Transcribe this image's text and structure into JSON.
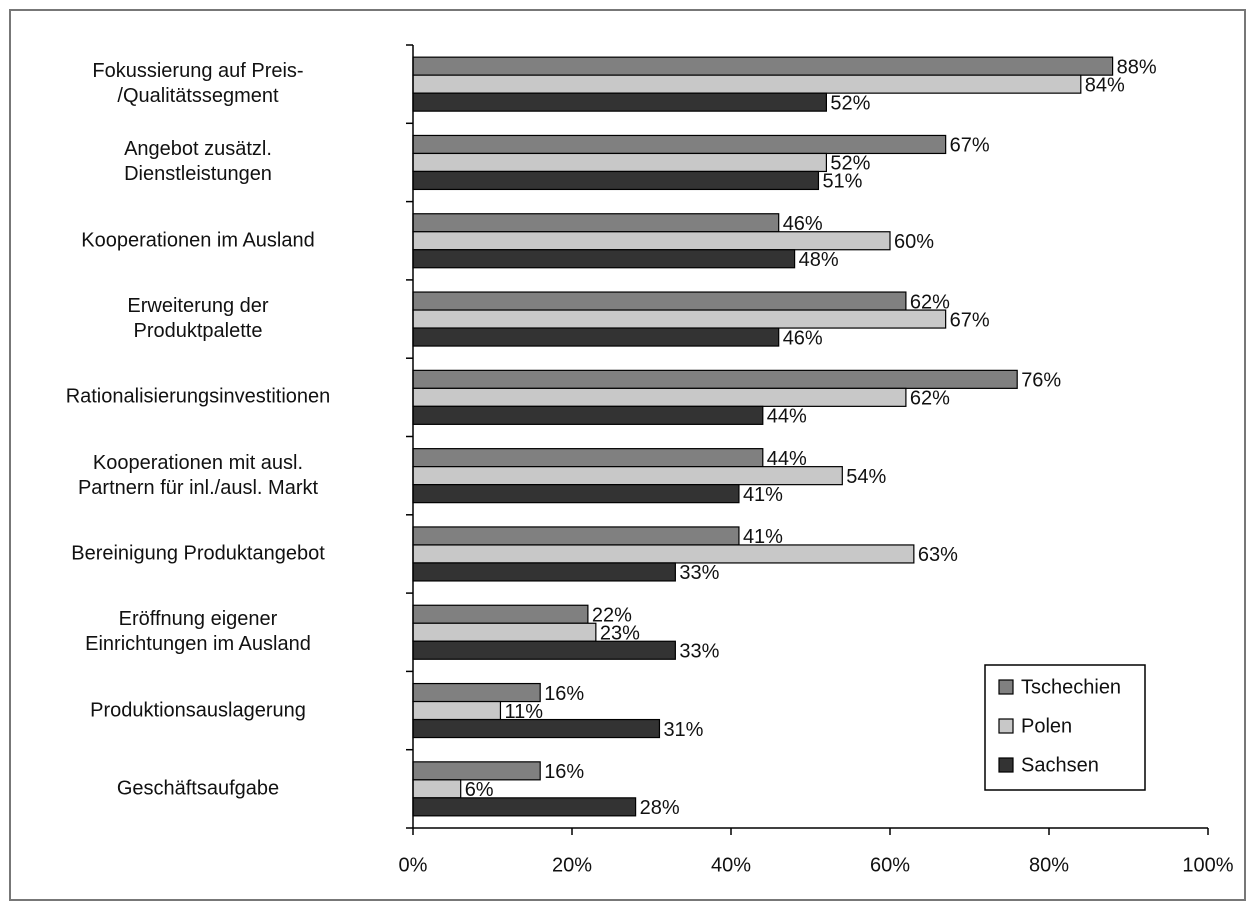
{
  "chart_data": {
    "type": "bar",
    "orientation": "horizontal",
    "categories": [
      "Fokussierung auf Preis-\n/Qualitätssegment",
      "Angebot zusätzl.\nDienstleistungen",
      "Kooperationen im Ausland",
      "Erweiterung der\nProduktpalette",
      "Rationalisierungsinvestitionen",
      "Kooperationen mit ausl.\nPartnern für inl./ausl. Markt",
      "Bereinigung Produktangebot",
      "Eröffnung eigener\nEinrichtungen im Ausland",
      "Produktionsauslagerung",
      "Geschäftsaufgabe"
    ],
    "series": [
      {
        "name": "Tschechien",
        "color": "#808080",
        "values": [
          88,
          67,
          46,
          62,
          76,
          44,
          41,
          22,
          16,
          16
        ],
        "value_labels": [
          "88%",
          "67%",
          "46%",
          "62%",
          "76%",
          "44%",
          "41%",
          "22%",
          "16%",
          "16%"
        ]
      },
      {
        "name": "Polen",
        "color": "#c8c8c8",
        "values": [
          84,
          52,
          60,
          67,
          62,
          54,
          63,
          23,
          11,
          6
        ],
        "value_labels": [
          "84%",
          "52%",
          "60%",
          "67%",
          "62%",
          "54%",
          "63%",
          "23%",
          "11%",
          "6%"
        ]
      },
      {
        "name": "Sachsen",
        "color": "#333333",
        "values": [
          52,
          51,
          48,
          46,
          44,
          41,
          33,
          33,
          31,
          28
        ],
        "value_labels": [
          "52%",
          "51%",
          "48%",
          "46%",
          "44%",
          "41%",
          "33%",
          "33%",
          "31%",
          "28%"
        ]
      }
    ],
    "xlim": [
      0,
      100
    ],
    "xticks": [
      {
        "value": 0,
        "label": "0%"
      },
      {
        "value": 20,
        "label": "20%"
      },
      {
        "value": 40,
        "label": "40%"
      },
      {
        "value": 60,
        "label": "60%"
      },
      {
        "value": 80,
        "label": "80%"
      },
      {
        "value": 100,
        "label": "100%"
      }
    ],
    "legend": "lower right"
  }
}
